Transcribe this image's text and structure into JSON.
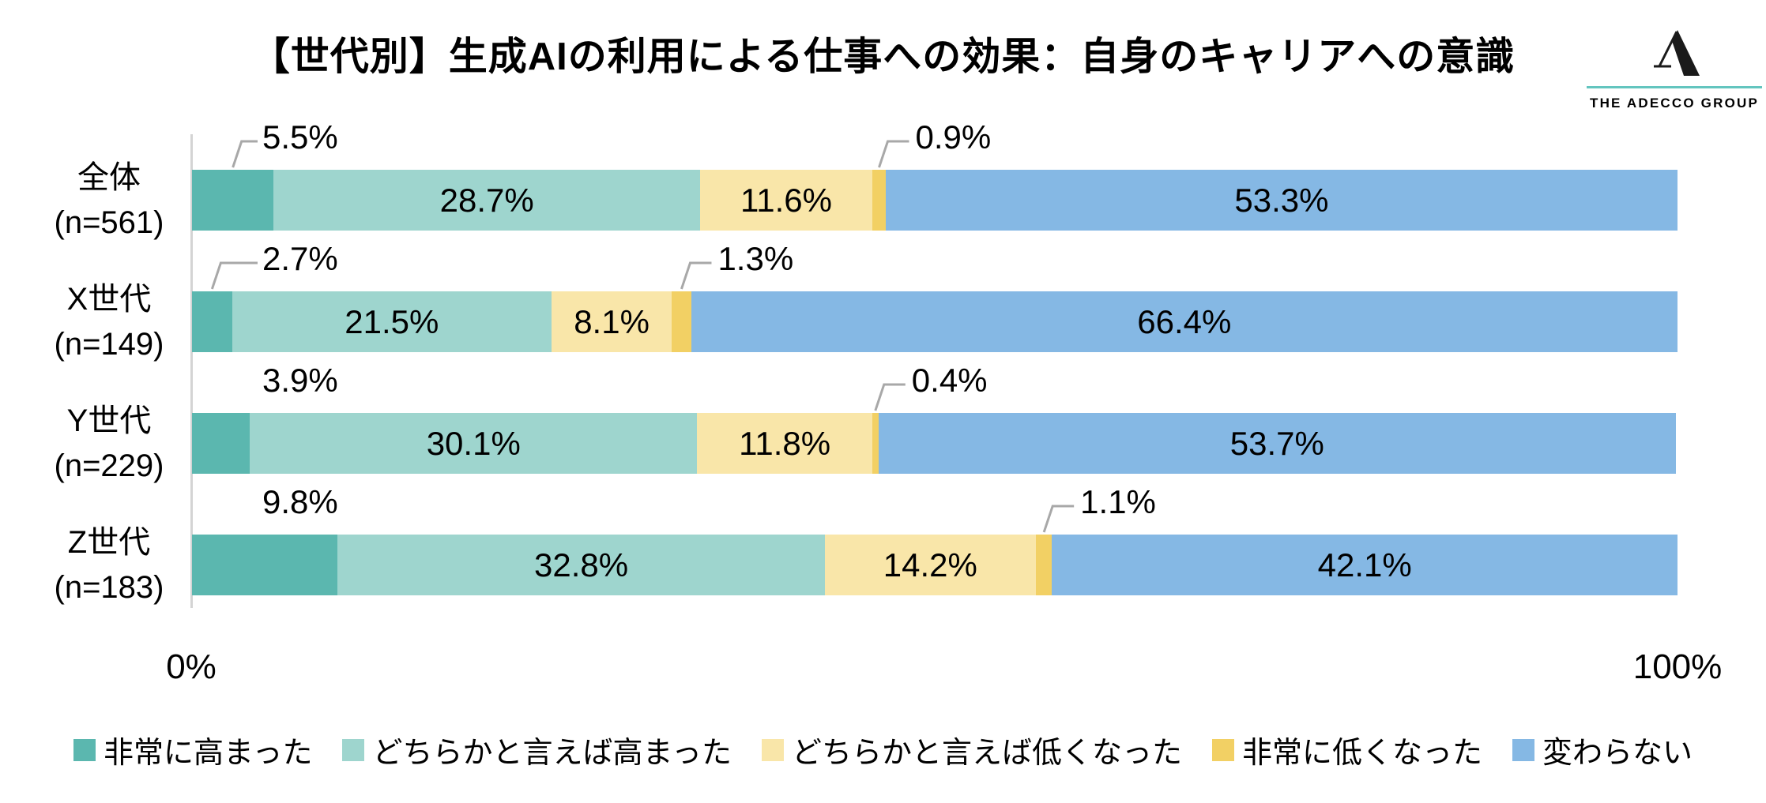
{
  "title": "【世代別】生成AIの利用による仕事への効果：自身のキャリアへの意識",
  "logo": {
    "company_name": "THE ADECCO GROUP",
    "accent_color": "#63C5BF",
    "mark_color": "#1A1A1A"
  },
  "x_axis": {
    "min_label": "0%",
    "max_label": "100%"
  },
  "legend": [
    {
      "label": "非常に高まった",
      "color": "#5BB7AF"
    },
    {
      "label": "どちらかと言えば高まった",
      "color": "#9ED5CE"
    },
    {
      "label": "どちらかと言えば低くなった",
      "color": "#F9E6A9"
    },
    {
      "label": "非常に低くなった",
      "color": "#F2D064"
    },
    {
      "label": "変わらない",
      "color": "#85B8E4"
    }
  ],
  "colors": {
    "callout_line": "#A8A8A8",
    "axis_line": "#D4D4D4",
    "label_text": "#000000"
  },
  "chart_data": {
    "type": "bar",
    "orientation": "horizontal",
    "stacked": true,
    "unit": "%",
    "x_range": [
      0,
      100
    ],
    "grid": false,
    "legend_position": "bottom",
    "series_names": [
      "非常に高まった",
      "どちらかと言えば高まった",
      "どちらかと言えば低くなった",
      "非常に低くなった",
      "変わらない"
    ],
    "rows": [
      {
        "category": "全体",
        "sample_label": "(n=561)",
        "values": [
          5.5,
          28.7,
          11.6,
          0.9,
          53.3
        ],
        "first_value_callout": true
      },
      {
        "category": "X世代",
        "sample_label": "(n=149)",
        "values": [
          2.7,
          21.5,
          8.1,
          1.3,
          66.4
        ],
        "first_value_callout": true
      },
      {
        "category": "Y世代",
        "sample_label": "(n=229)",
        "values": [
          3.9,
          30.1,
          11.8,
          0.4,
          53.7
        ],
        "first_value_callout": false
      },
      {
        "category": "Z世代",
        "sample_label": "(n=183)",
        "values": [
          9.8,
          32.8,
          14.2,
          1.1,
          42.1
        ],
        "first_value_callout": false
      }
    ],
    "inside_label_series_indexes": [
      1,
      2,
      4
    ],
    "above_label_series_indexes": [
      0,
      3
    ]
  }
}
